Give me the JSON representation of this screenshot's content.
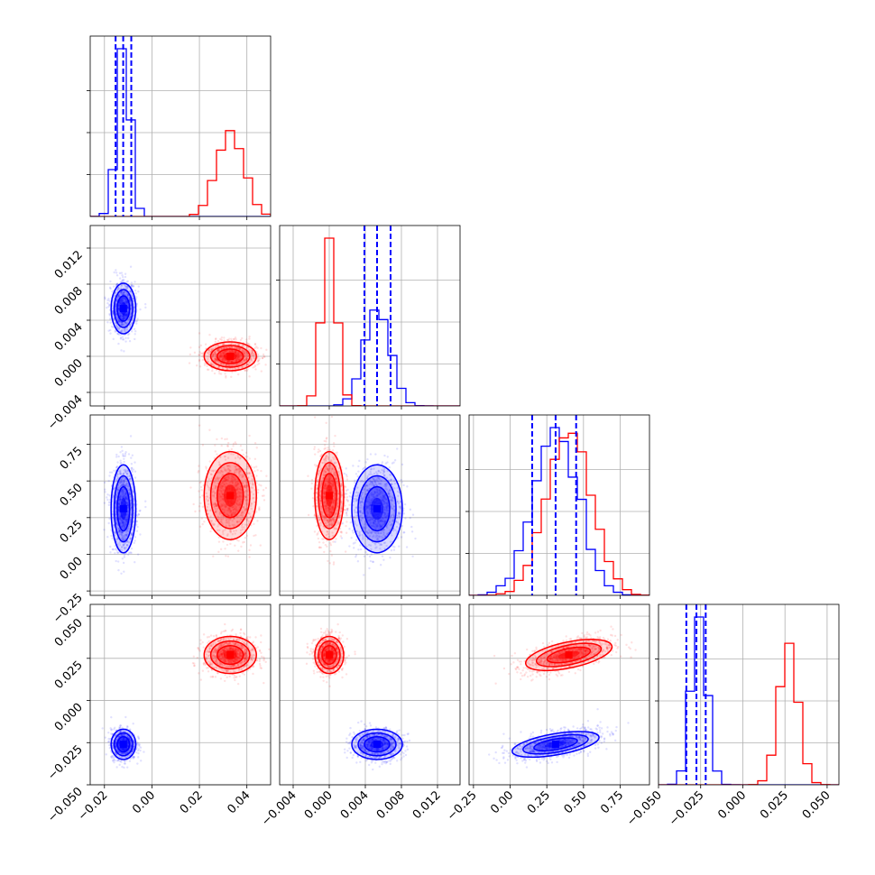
{
  "chart_data": {
    "type": "corner",
    "grid": true,
    "colors": {
      "series_a": "#0000ff",
      "series_b": "#ff0000"
    },
    "params": [
      {
        "range": [
          -0.026,
          0.05
        ],
        "ticks": [
          "−0.02",
          "0.00",
          "0.02",
          "0.04"
        ],
        "tick_values": [
          -0.02,
          0.0,
          0.02,
          0.04
        ]
      },
      {
        "range": [
          -0.0055,
          0.0145
        ],
        "ticks": [
          "−0.004",
          "0.000",
          "0.004",
          "0.008",
          "0.012"
        ],
        "tick_values": [
          -0.004,
          0.0,
          0.004,
          0.008,
          0.012
        ]
      },
      {
        "range": [
          -0.28,
          0.95
        ],
        "ticks": [
          "−0.25",
          "0.00",
          "0.25",
          "0.50",
          "0.75"
        ],
        "tick_values": [
          -0.25,
          0.0,
          0.25,
          0.5,
          0.75
        ]
      },
      {
        "range": [
          -0.05,
          0.057
        ],
        "ticks": [
          "−0.050",
          "−0.025",
          "0.000",
          "0.025",
          "0.050"
        ],
        "tick_values": [
          -0.05,
          -0.025,
          0.0,
          0.025,
          0.05
        ]
      }
    ],
    "series": [
      {
        "color": "#0000ff",
        "mean": [
          -0.012,
          0.0053,
          0.31,
          -0.026
        ],
        "std": [
          0.0026,
          0.0014,
          0.15,
          0.0045
        ],
        "quantiles": [
          [
            -0.0153,
            -0.0121,
            -0.0087
          ],
          [
            0.0039,
            0.0053,
            0.0068
          ],
          [
            0.15,
            0.31,
            0.45
          ],
          [
            -0.0335,
            -0.0275,
            -0.022
          ]
        ],
        "corr_2_3": 0.55
      },
      {
        "color": "#ff0000",
        "mean": [
          0.033,
          0.0,
          0.4,
          0.027
        ],
        "std": [
          0.0055,
          0.0008,
          0.15,
          0.0055
        ],
        "corr_2_3": 0.55
      }
    ]
  }
}
